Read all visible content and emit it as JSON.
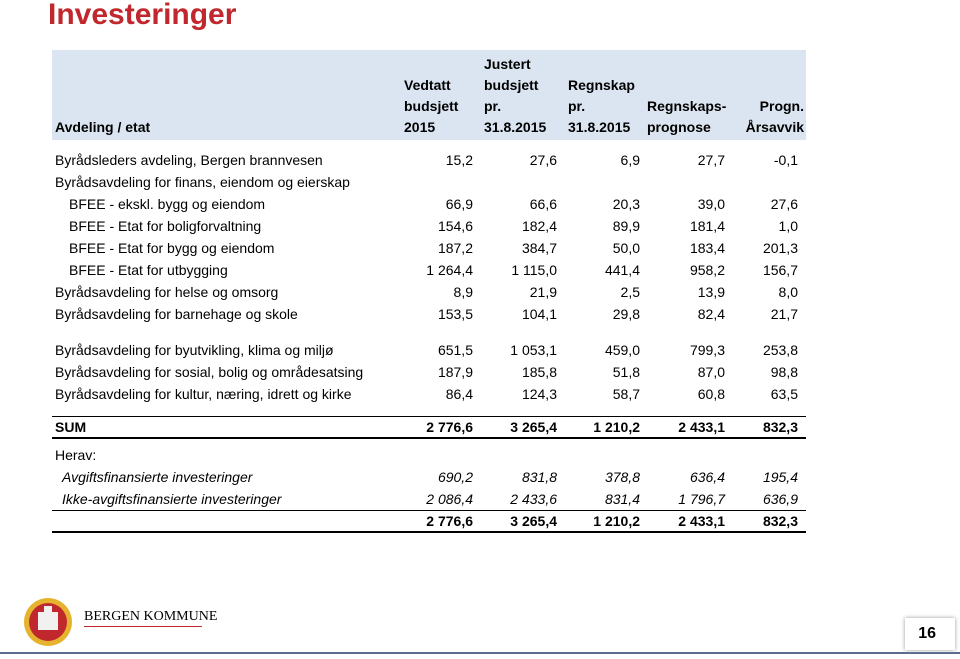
{
  "title": "Investeringer",
  "table": {
    "header": [
      [
        "Avdeling / etat"
      ],
      [
        "Vedtatt",
        "budsjett",
        "2015"
      ],
      [
        "Justert",
        "budsjett",
        "pr.",
        "31.8.2015"
      ],
      [
        "Regnskap",
        "pr.",
        "31.8.2015"
      ],
      [
        "Regnskaps-",
        "prognose"
      ],
      [
        "Progn.",
        "Årsavvik"
      ]
    ],
    "groups": [
      {
        "rows": [
          [
            "Byrådsleders avdeling, Bergen brannvesen",
            "15,2",
            "27,6",
            "6,9",
            "27,7",
            "-0,1"
          ],
          [
            "Byrådsavdeling for finans, eiendom og eierskap"
          ],
          [
            "BFEE - ekskl. bygg og eiendom",
            "66,9",
            "66,6",
            "20,3",
            "39,0",
            "27,6"
          ],
          [
            "BFEE - Etat for boligforvaltning",
            "154,6",
            "182,4",
            "89,9",
            "181,4",
            "1,0"
          ],
          [
            "BFEE - Etat for bygg og eiendom",
            "187,2",
            "384,7",
            "50,0",
            "183,4",
            "201,3"
          ],
          [
            "BFEE - Etat for utbygging",
            "1 264,4",
            "1 115,0",
            "441,4",
            "958,2",
            "156,7"
          ],
          [
            "Byrådsavdeling for helse og omsorg",
            "8,9",
            "21,9",
            "2,5",
            "13,9",
            "8,0"
          ],
          [
            "Byrådsavdeling for barnehage og skole",
            "153,5",
            "104,1",
            "29,8",
            "82,4",
            "21,7"
          ]
        ]
      },
      {
        "rows": [
          [
            "Byrådsavdeling for byutvikling, klima og miljø",
            "651,5",
            "1 053,1",
            "459,0",
            "799,3",
            "253,8"
          ],
          [
            "Byrådsavdeling for sosial, bolig og områdesatsing",
            "187,9",
            "185,8",
            "51,8",
            "87,0",
            "98,8"
          ],
          [
            "Byrådsavdeling for kultur, næring, idrett og kirke",
            "86,4",
            "124,3",
            "58,7",
            "60,8",
            "63,5"
          ]
        ]
      }
    ],
    "sum": [
      "SUM",
      "2 776,6",
      "3 265,4",
      "1 210,2",
      "2 433,1",
      "832,3"
    ],
    "herav": {
      "label": "Herav:",
      "rows": [
        [
          "Avgiftsfinansierte investeringer",
          "690,2",
          "831,8",
          "378,8",
          "636,4",
          "195,4"
        ],
        [
          "Ikke-avgiftsfinansierte investeringer",
          "2 086,4",
          "2 433,6",
          "831,4",
          "1 796,7",
          "636,9"
        ]
      ]
    },
    "total": [
      "2 776,6",
      "3 265,4",
      "1 210,2",
      "2 433,1",
      "832,3"
    ]
  },
  "footer": {
    "logo_text": "BERGEN KOMMUNE",
    "page": "16"
  }
}
